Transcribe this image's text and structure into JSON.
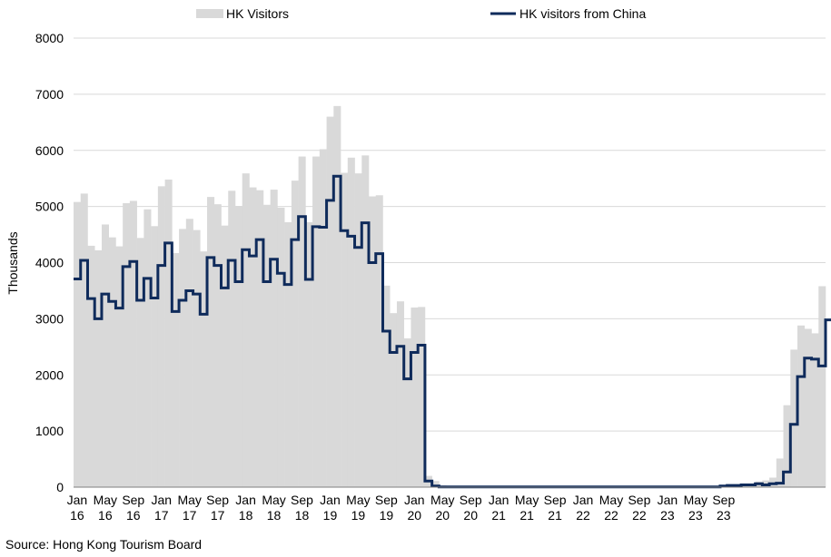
{
  "chart_data": {
    "type": "bar",
    "ylabel": "Thousands",
    "ylim": [
      0,
      8000
    ],
    "yticks": [
      0,
      1000,
      2000,
      3000,
      4000,
      5000,
      6000,
      7000,
      8000
    ],
    "grid": true,
    "legend_position": "top",
    "x_start": "2016-01",
    "x_end": "2023-09",
    "x_tick_labels": [
      {
        "month": "Jan",
        "year": "16"
      },
      {
        "month": "May",
        "year": "16"
      },
      {
        "month": "Sep",
        "year": "16"
      },
      {
        "month": "Jan",
        "year": "17"
      },
      {
        "month": "May",
        "year": "17"
      },
      {
        "month": "Sep",
        "year": "17"
      },
      {
        "month": "Jan",
        "year": "18"
      },
      {
        "month": "May",
        "year": "18"
      },
      {
        "month": "Sep",
        "year": "18"
      },
      {
        "month": "Jan",
        "year": "19"
      },
      {
        "month": "May",
        "year": "19"
      },
      {
        "month": "Sep",
        "year": "19"
      },
      {
        "month": "Jan",
        "year": "20"
      },
      {
        "month": "May",
        "year": "20"
      },
      {
        "month": "Sep",
        "year": "20"
      },
      {
        "month": "Jan",
        "year": "21"
      },
      {
        "month": "May",
        "year": "21"
      },
      {
        "month": "Sep",
        "year": "21"
      },
      {
        "month": "Jan",
        "year": "22"
      },
      {
        "month": "May",
        "year": "22"
      },
      {
        "month": "Sep",
        "year": "22"
      },
      {
        "month": "Jan",
        "year": "23"
      },
      {
        "month": "May",
        "year": "23"
      },
      {
        "month": "Sep",
        "year": "23"
      }
    ],
    "series": [
      {
        "name": "HK Visitors",
        "type": "bar",
        "color": "#d9d9d9",
        "values": [
          5080,
          5230,
          4300,
          4220,
          4680,
          4450,
          4290,
          5060,
          5100,
          4440,
          4950,
          4650,
          5360,
          5480,
          4170,
          4600,
          4780,
          4580,
          4200,
          5170,
          5040,
          4660,
          5280,
          5010,
          5590,
          5340,
          5290,
          5030,
          5300,
          4980,
          4720,
          5460,
          5890,
          4720,
          5890,
          6020,
          6600,
          6790,
          5600,
          5870,
          5590,
          5910,
          5180,
          5200,
          3590,
          3100,
          3310,
          2650,
          3200,
          3210,
          200,
          110,
          30,
          20,
          10,
          10,
          5,
          5,
          5,
          5,
          5,
          5,
          5,
          5,
          5,
          5,
          5,
          5,
          5,
          5,
          5,
          5,
          5,
          5,
          5,
          5,
          5,
          5,
          5,
          5,
          5,
          5,
          5,
          5,
          5,
          5,
          5,
          5,
          5,
          5,
          5,
          5,
          20,
          20,
          40,
          40,
          60,
          100,
          120,
          170,
          510,
          1460,
          2450,
          2880,
          2820,
          2740,
          3580
        ]
      },
      {
        "name": "HK visitors from China",
        "type": "line",
        "color": "#0f2b5b",
        "values": [
          3710,
          4040,
          3360,
          3000,
          3440,
          3310,
          3190,
          3930,
          4020,
          3330,
          3720,
          3370,
          3950,
          4350,
          3130,
          3330,
          3500,
          3440,
          3080,
          4090,
          3950,
          3550,
          4040,
          3660,
          4230,
          4120,
          4410,
          3660,
          4060,
          3810,
          3610,
          4410,
          4820,
          3700,
          4640,
          4630,
          5110,
          5540,
          4570,
          4470,
          4270,
          4710,
          4000,
          4160,
          2780,
          2400,
          2510,
          1930,
          2400,
          2530,
          110,
          20,
          5,
          5,
          5,
          5,
          5,
          5,
          5,
          5,
          5,
          5,
          5,
          5,
          5,
          5,
          5,
          5,
          5,
          5,
          5,
          5,
          5,
          5,
          5,
          5,
          5,
          5,
          5,
          5,
          5,
          5,
          5,
          5,
          5,
          5,
          5,
          5,
          5,
          5,
          5,
          5,
          20,
          30,
          30,
          40,
          40,
          60,
          40,
          60,
          70,
          270,
          1120,
          1970,
          2300,
          2280,
          2160,
          2980
        ]
      }
    ]
  },
  "source": "Source: Hong Kong Tourism Board"
}
